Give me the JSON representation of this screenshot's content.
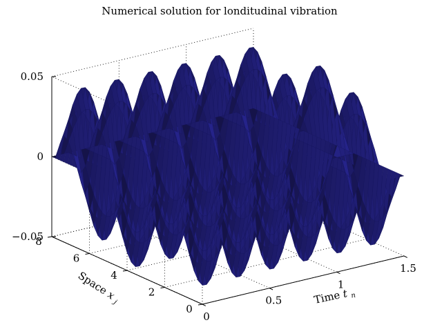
{
  "chart_data": {
    "type": "surface",
    "title": "Numerical solution for londitudinal vibration",
    "xlabel": "Time",
    "xlabel_var": "t",
    "xlabel_sub": "n",
    "ylabel": "Space",
    "ylabel_var": "x",
    "ylabel_sub": "j",
    "zlabel": "",
    "x_ticks": [
      "0",
      "0.5",
      "1",
      "1.5"
    ],
    "y_ticks": [
      "0",
      "2",
      "4",
      "6",
      "8"
    ],
    "z_ticks": [
      "0.05",
      "0",
      "−0.05"
    ],
    "xlim": [
      0,
      1.5
    ],
    "ylim": [
      0,
      8
    ],
    "zlim": [
      -0.05,
      0.05
    ],
    "grid": true,
    "surface_color": "#1f1f7a",
    "surface_edge_color": "#14145a",
    "surface_model": {
      "amplitude": 0.05,
      "time_modes": 6,
      "space_modes": 3,
      "x_samples": 48,
      "y_samples": 36
    }
  }
}
